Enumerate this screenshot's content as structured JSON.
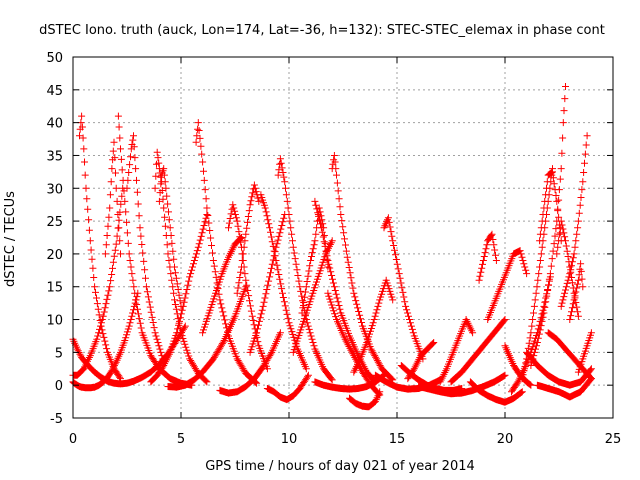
{
  "chart_data": {
    "type": "scatter",
    "title": "dSTEC Iono. truth (auck, Lon=174, Lat=-36, h=132): STEC-STEC_elemax in phase cont",
    "xlabel": "GPS time / hours of day 021 of year 2014",
    "ylabel": "dSTEC  / TECUs",
    "xlim": [
      0,
      25
    ],
    "ylim": [
      -5,
      50
    ],
    "xticks": [
      "0",
      "5",
      "10",
      "15",
      "20",
      "25"
    ],
    "yticks": [
      "-5",
      "0",
      "5",
      "10",
      "15",
      "20",
      "25",
      "30",
      "35",
      "40",
      "45",
      "50"
    ],
    "grid": true,
    "marker": "plus",
    "color": "#ff0000",
    "series": [
      {
        "x": [
          0.0,
          0.1,
          0.2,
          0.3,
          0.4,
          0.6,
          0.8,
          1.0,
          1.2,
          1.4,
          1.6,
          1.8,
          2.0,
          2.2,
          2.4,
          2.6,
          2.8,
          3.0
        ],
        "y": [
          0.5,
          0.2,
          0.0,
          -0.2,
          -0.3,
          -0.4,
          -0.4,
          -0.3,
          0.0,
          0.5,
          1.2,
          2.2,
          3.5,
          5.0,
          6.8,
          9.0,
          11.5,
          14.0
        ]
      },
      {
        "x": [
          0.0,
          0.2,
          0.4,
          0.7,
          1.0,
          1.3,
          1.6,
          1.9,
          2.2,
          2.5,
          2.8,
          3.2,
          3.6,
          4.0,
          4.4,
          4.8,
          5.2
        ],
        "y": [
          7.0,
          5.5,
          4.2,
          3.0,
          2.0,
          1.2,
          0.6,
          0.3,
          0.2,
          0.3,
          0.6,
          1.2,
          2.0,
          3.2,
          4.8,
          6.8,
          9.0
        ]
      },
      {
        "x": [
          0.0,
          0.2,
          0.5,
          0.8,
          1.1,
          1.4,
          1.7,
          2.0,
          2.3
        ],
        "y": [
          1.5,
          1.5,
          2.5,
          4.5,
          7.0,
          10.5,
          15.0,
          21.5,
          30.0
        ]
      },
      {
        "x": [
          0.3,
          0.4,
          0.5,
          0.6,
          0.8,
          1.0,
          1.3,
          1.6,
          1.9,
          2.2
        ],
        "y": [
          38.0,
          41.0,
          36.0,
          30.0,
          22.0,
          15.0,
          9.0,
          5.0,
          2.5,
          1.0
        ]
      },
      {
        "x": [
          1.5,
          1.7,
          1.8,
          1.9,
          2.0,
          2.2
        ],
        "y": [
          20.0,
          27.0,
          33.0,
          37.0,
          30.0,
          20.0
        ]
      },
      {
        "x": [
          2.1,
          2.2,
          2.4,
          2.6,
          2.9,
          3.2,
          3.6,
          4.0,
          4.5,
          5.0,
          5.5
        ],
        "y": [
          41.0,
          36.0,
          28.0,
          20.0,
          13.0,
          8.0,
          4.5,
          2.5,
          1.0,
          0.3,
          0.0
        ]
      },
      {
        "x": [
          2.5,
          2.7,
          2.8,
          2.9,
          3.1,
          3.4,
          3.8,
          4.2
        ],
        "y": [
          30.0,
          36.0,
          38.0,
          33.0,
          24.0,
          15.0,
          8.0,
          3.5
        ]
      },
      {
        "x": [
          3.8,
          3.9,
          4.0,
          4.1,
          4.2,
          4.4,
          4.7,
          5.0,
          5.4,
          5.8,
          6.2
        ],
        "y": [
          30.0,
          35.5,
          33.0,
          31.0,
          27.0,
          20.0,
          13.0,
          8.0,
          4.0,
          1.8,
          0.5
        ]
      },
      {
        "x": [
          4.0,
          4.1,
          4.2,
          4.3,
          4.5,
          4.7,
          5.0
        ],
        "y": [
          28.0,
          32.0,
          33.0,
          30.0,
          24.0,
          18.0,
          12.0
        ]
      },
      {
        "x": [
          3.6,
          3.9,
          4.2,
          4.5,
          4.8,
          5.1,
          5.4,
          5.8,
          6.2
        ],
        "y": [
          0.5,
          1.5,
          3.0,
          5.0,
          8.0,
          12.0,
          16.5,
          21.0,
          26.0
        ]
      },
      {
        "x": [
          5.7,
          5.8,
          6.0,
          6.2,
          6.5,
          6.8,
          7.2,
          7.6,
          8.0,
          8.5
        ],
        "y": [
          37.0,
          40.0,
          34.0,
          27.0,
          19.0,
          13.0,
          7.5,
          4.0,
          1.8,
          0.3
        ]
      },
      {
        "x": [
          4.4,
          4.8,
          5.2,
          5.6,
          6.0,
          6.5,
          7.0,
          7.5,
          8.0
        ],
        "y": [
          -0.2,
          -0.3,
          0.0,
          0.8,
          2.0,
          4.0,
          6.8,
          10.5,
          15.0
        ]
      },
      {
        "x": [
          6.0,
          6.3,
          6.6,
          6.9,
          7.2,
          7.5,
          7.8
        ],
        "y": [
          8.0,
          11.0,
          14.0,
          17.0,
          19.5,
          21.5,
          22.5
        ]
      },
      {
        "x": [
          7.2,
          7.4,
          7.6,
          7.8,
          8.0,
          8.3,
          8.6,
          9.0
        ],
        "y": [
          24.0,
          27.5,
          25.0,
          21.0,
          16.0,
          10.5,
          6.0,
          2.5
        ]
      },
      {
        "x": [
          6.8,
          7.2,
          7.6,
          8.0,
          8.4,
          8.8,
          9.2,
          9.6
        ],
        "y": [
          -0.8,
          -1.2,
          -1.0,
          -0.2,
          1.0,
          2.8,
          5.0,
          8.0
        ]
      },
      {
        "x": [
          7.6,
          7.8,
          8.0,
          8.2,
          8.4,
          8.6
        ],
        "y": [
          14.0,
          18.0,
          23.0,
          27.5,
          30.5,
          28.0
        ]
      },
      {
        "x": [
          8.2,
          8.5,
          8.8,
          9.1,
          9.4,
          9.8
        ],
        "y": [
          5.0,
          8.0,
          12.0,
          16.5,
          21.0,
          26.0
        ]
      },
      {
        "x": [
          8.7,
          8.9,
          9.1,
          9.4,
          9.7,
          10.0,
          10.4,
          10.8
        ],
        "y": [
          29.0,
          27.0,
          24.0,
          19.0,
          14.0,
          9.5,
          5.5,
          2.5
        ]
      },
      {
        "x": [
          9.5,
          9.6,
          9.8,
          10.0,
          10.2,
          10.5,
          10.8,
          11.2,
          11.6,
          12.0
        ],
        "y": [
          32.0,
          34.5,
          31.0,
          26.0,
          21.0,
          15.0,
          10.0,
          5.5,
          2.5,
          0.8
        ]
      },
      {
        "x": [
          9.0,
          9.3,
          9.6,
          9.9,
          10.2,
          10.5,
          10.9
        ],
        "y": [
          -0.5,
          -1.0,
          -1.8,
          -2.2,
          -1.6,
          -0.5,
          1.5
        ]
      },
      {
        "x": [
          10.2,
          10.5,
          10.8,
          11.1,
          11.4,
          11.7,
          12.0
        ],
        "y": [
          5.0,
          8.0,
          11.0,
          14.0,
          17.0,
          20.0,
          22.0
        ]
      },
      {
        "x": [
          10.6,
          10.8,
          11.0,
          11.2,
          11.4,
          11.6,
          11.8
        ],
        "y": [
          11.0,
          15.0,
          19.0,
          22.0,
          27.0,
          24.0,
          18.0
        ]
      },
      {
        "x": [
          11.2,
          11.5,
          11.8,
          12.1,
          12.4,
          12.8,
          13.2,
          13.6,
          14.0
        ],
        "y": [
          28.0,
          24.0,
          19.0,
          15.0,
          11.0,
          7.5,
          4.5,
          2.0,
          0.5
        ]
      },
      {
        "x": [
          12.0,
          12.1,
          12.2,
          12.4,
          12.7,
          13.0,
          13.4,
          13.8,
          14.3,
          14.8
        ],
        "y": [
          33.0,
          35.0,
          32.0,
          26.0,
          19.5,
          14.0,
          9.0,
          5.5,
          2.5,
          0.8
        ]
      },
      {
        "x": [
          11.2,
          11.6,
          12.0,
          12.4,
          12.8,
          13.2,
          13.6,
          14.0,
          14.4
        ],
        "y": [
          0.5,
          0.0,
          -0.3,
          -0.5,
          -0.6,
          -0.5,
          -0.2,
          0.5,
          1.5
        ]
      },
      {
        "x": [
          11.8,
          12.2,
          12.6,
          13.0,
          13.4,
          13.8,
          14.2
        ],
        "y": [
          14.0,
          10.0,
          7.0,
          4.5,
          2.0,
          0.0,
          -1.5
        ]
      },
      {
        "x": [
          12.8,
          13.1,
          13.4,
          13.7,
          14.0,
          14.2
        ],
        "y": [
          -2.0,
          -2.8,
          -3.2,
          -3.3,
          -2.5,
          -1.0
        ]
      },
      {
        "x": [
          13.0,
          13.3,
          13.6,
          13.9,
          14.2,
          14.5,
          14.8
        ],
        "y": [
          2.0,
          4.0,
          6.5,
          9.5,
          13.0,
          16.0,
          13.0
        ]
      },
      {
        "x": [
          14.4,
          14.6,
          14.8,
          15.1,
          15.4,
          15.8,
          16.2
        ],
        "y": [
          24.0,
          25.5,
          22.0,
          17.0,
          12.0,
          7.5,
          4.0
        ]
      },
      {
        "x": [
          14.0,
          14.5,
          15.0,
          15.5,
          16.0,
          16.5,
          17.0
        ],
        "y": [
          1.5,
          0.5,
          -0.3,
          -0.6,
          -0.5,
          0.0,
          0.8
        ]
      },
      {
        "x": [
          15.2,
          15.6,
          16.0,
          16.4,
          16.8,
          17.2,
          17.6,
          18.0
        ],
        "y": [
          3.0,
          1.8,
          0.8,
          0.0,
          -0.5,
          -0.8,
          -0.8,
          -0.5
        ]
      },
      {
        "x": [
          15.5,
          15.8,
          16.1,
          16.4,
          16.7
        ],
        "y": [
          1.0,
          2.5,
          4.5,
          5.5,
          6.5
        ]
      },
      {
        "x": [
          17.0,
          17.3,
          17.6,
          17.9,
          18.2,
          18.5
        ],
        "y": [
          0.5,
          2.5,
          5.0,
          7.5,
          10.0,
          8.0
        ]
      },
      {
        "x": [
          16.0,
          16.5,
          17.0,
          17.5,
          18.0,
          18.5,
          19.0,
          19.5,
          20.0
        ],
        "y": [
          -0.2,
          -0.6,
          -1.0,
          -1.3,
          -1.2,
          -0.8,
          -0.2,
          0.5,
          1.5
        ]
      },
      {
        "x": [
          17.5,
          18.0,
          18.5,
          19.0,
          19.5,
          20.0
        ],
        "y": [
          0.5,
          2.0,
          4.0,
          6.0,
          8.0,
          10.0
        ]
      },
      {
        "x": [
          18.4,
          18.8,
          19.2,
          19.6,
          20.0,
          20.4,
          20.8
        ],
        "y": [
          0.5,
          -0.8,
          -1.6,
          -2.2,
          -2.6,
          -2.0,
          -1.0
        ]
      },
      {
        "x": [
          18.8,
          19.0,
          19.2,
          19.4,
          19.6
        ],
        "y": [
          16.0,
          19.0,
          22.0,
          23.0,
          19.0
        ]
      },
      {
        "x": [
          19.2,
          19.5,
          19.8,
          20.1,
          20.4,
          20.7,
          21.0
        ],
        "y": [
          10.0,
          12.5,
          15.0,
          17.5,
          20.0,
          20.5,
          17.0
        ]
      },
      {
        "x": [
          20.0,
          20.2,
          20.4,
          20.6,
          20.8,
          21.0,
          21.2
        ],
        "y": [
          6.0,
          4.5,
          3.0,
          2.0,
          1.2,
          0.5,
          0.0
        ]
      },
      {
        "x": [
          20.3,
          20.6,
          20.9,
          21.2,
          21.5,
          21.8,
          22.1
        ],
        "y": [
          -1.0,
          0.5,
          2.5,
          5.0,
          8.0,
          12.0,
          16.5
        ]
      },
      {
        "x": [
          20.8,
          21.0,
          21.2,
          21.4,
          21.6,
          21.8,
          22.0,
          22.2
        ],
        "y": [
          1.0,
          4.0,
          8.0,
          13.0,
          18.0,
          23.0,
          28.0,
          33.0
        ]
      },
      {
        "x": [
          21.2,
          21.5,
          21.8,
          22.1,
          22.4,
          22.6,
          22.7,
          22.8
        ],
        "y": [
          3.0,
          6.5,
          11.0,
          17.0,
          25.0,
          33.0,
          40.0,
          45.5
        ]
      },
      {
        "x": [
          21.6,
          21.8,
          22.0,
          22.2,
          22.4,
          22.6
        ],
        "y": [
          22.0,
          27.0,
          32.0,
          32.5,
          28.0,
          22.0
        ]
      },
      {
        "x": [
          22.4,
          22.6,
          22.8,
          23.0,
          23.2,
          23.4
        ],
        "y": [
          20.0,
          25.0,
          22.0,
          18.0,
          14.0,
          10.5
        ]
      },
      {
        "x": [
          22.6,
          22.8,
          23.0,
          23.2,
          23.4,
          23.6,
          23.8
        ],
        "y": [
          12.0,
          14.5,
          17.0,
          20.0,
          25.0,
          31.0,
          38.0
        ]
      },
      {
        "x": [
          23.0,
          23.2,
          23.4,
          23.5,
          23.6
        ],
        "y": [
          10.0,
          13.0,
          16.0,
          18.5,
          15.0
        ]
      },
      {
        "x": [
          21.0,
          21.5,
          22.0,
          22.5,
          23.0,
          23.5,
          24.0
        ],
        "y": [
          5.0,
          3.0,
          1.5,
          0.5,
          0.0,
          0.5,
          2.5
        ]
      },
      {
        "x": [
          21.5,
          22.0,
          22.5,
          23.0,
          23.5,
          24.0
        ],
        "y": [
          0.0,
          -0.5,
          -1.0,
          -1.8,
          -1.0,
          1.0
        ]
      },
      {
        "x": [
          22.0,
          22.4,
          22.8,
          23.2,
          23.6,
          24.0
        ],
        "y": [
          8.0,
          7.0,
          5.5,
          4.0,
          2.5,
          1.0
        ]
      },
      {
        "x": [
          23.4,
          23.6,
          23.8,
          24.0
        ],
        "y": [
          2.0,
          4.0,
          6.0,
          8.0
        ]
      }
    ]
  }
}
